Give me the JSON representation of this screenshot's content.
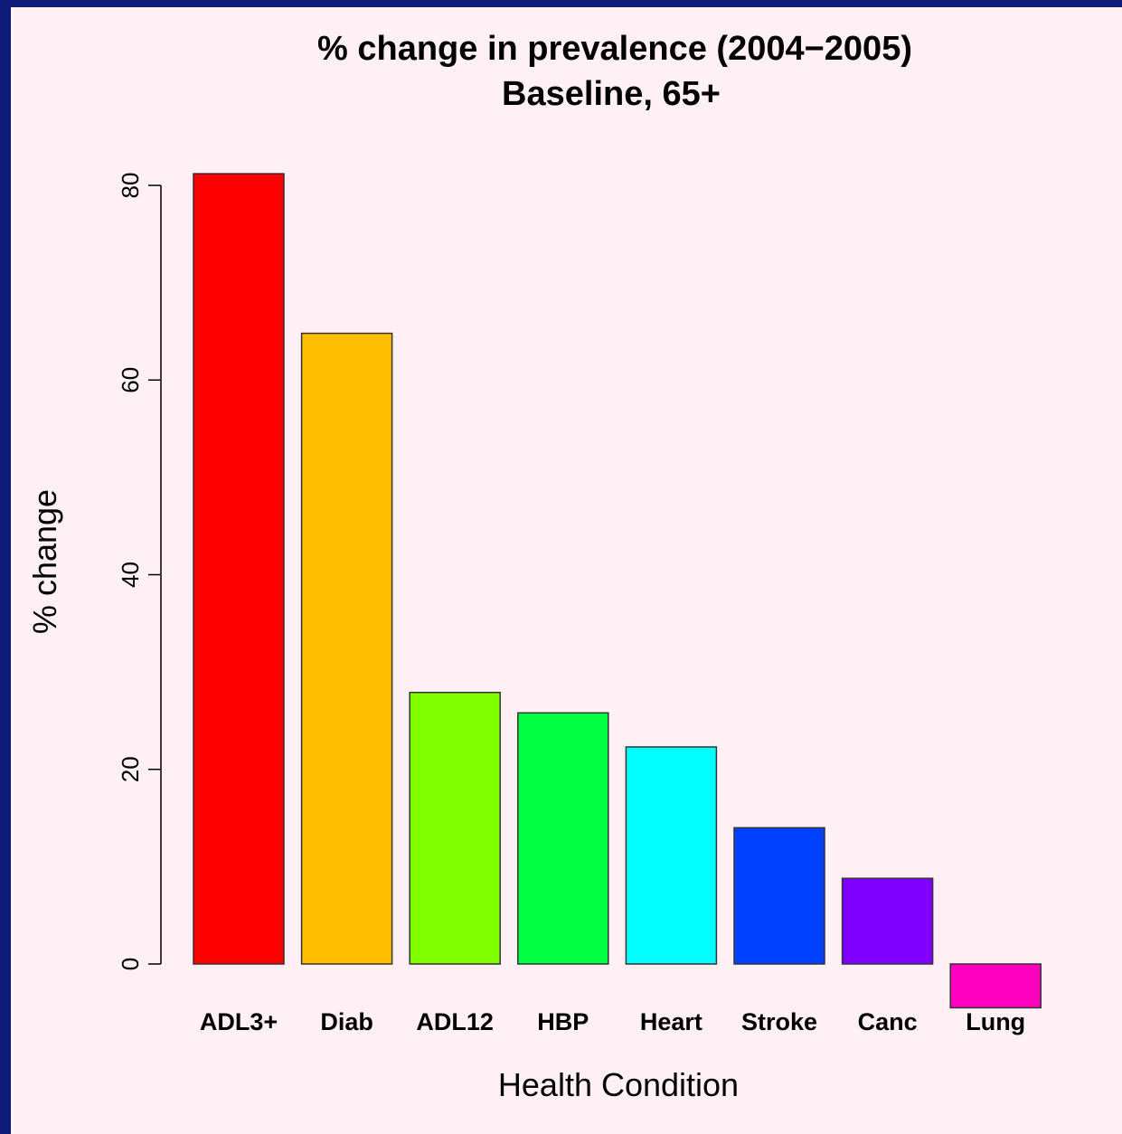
{
  "chart_data": {
    "type": "bar",
    "title": "% change in prevalence (2004−2005)",
    "subtitle": "Baseline, 65+",
    "xlabel": "Health Condition",
    "ylabel": "% change",
    "categories": [
      "ADL3+",
      "Diab",
      "ADL12",
      "HBP",
      "Heart",
      "Stroke",
      "Canc",
      "Lung"
    ],
    "values": [
      81.2,
      64.8,
      27.9,
      25.8,
      22.3,
      14.0,
      8.8,
      -4.5
    ],
    "colors": [
      "#ff0000",
      "#ffbf00",
      "#80ff00",
      "#00ff40",
      "#00ffff",
      "#0040ff",
      "#8000ff",
      "#ff00bf"
    ],
    "ylim": [
      0,
      80
    ],
    "yticks": [
      0,
      20,
      40,
      60,
      80
    ],
    "grid": false,
    "legend": "none"
  }
}
